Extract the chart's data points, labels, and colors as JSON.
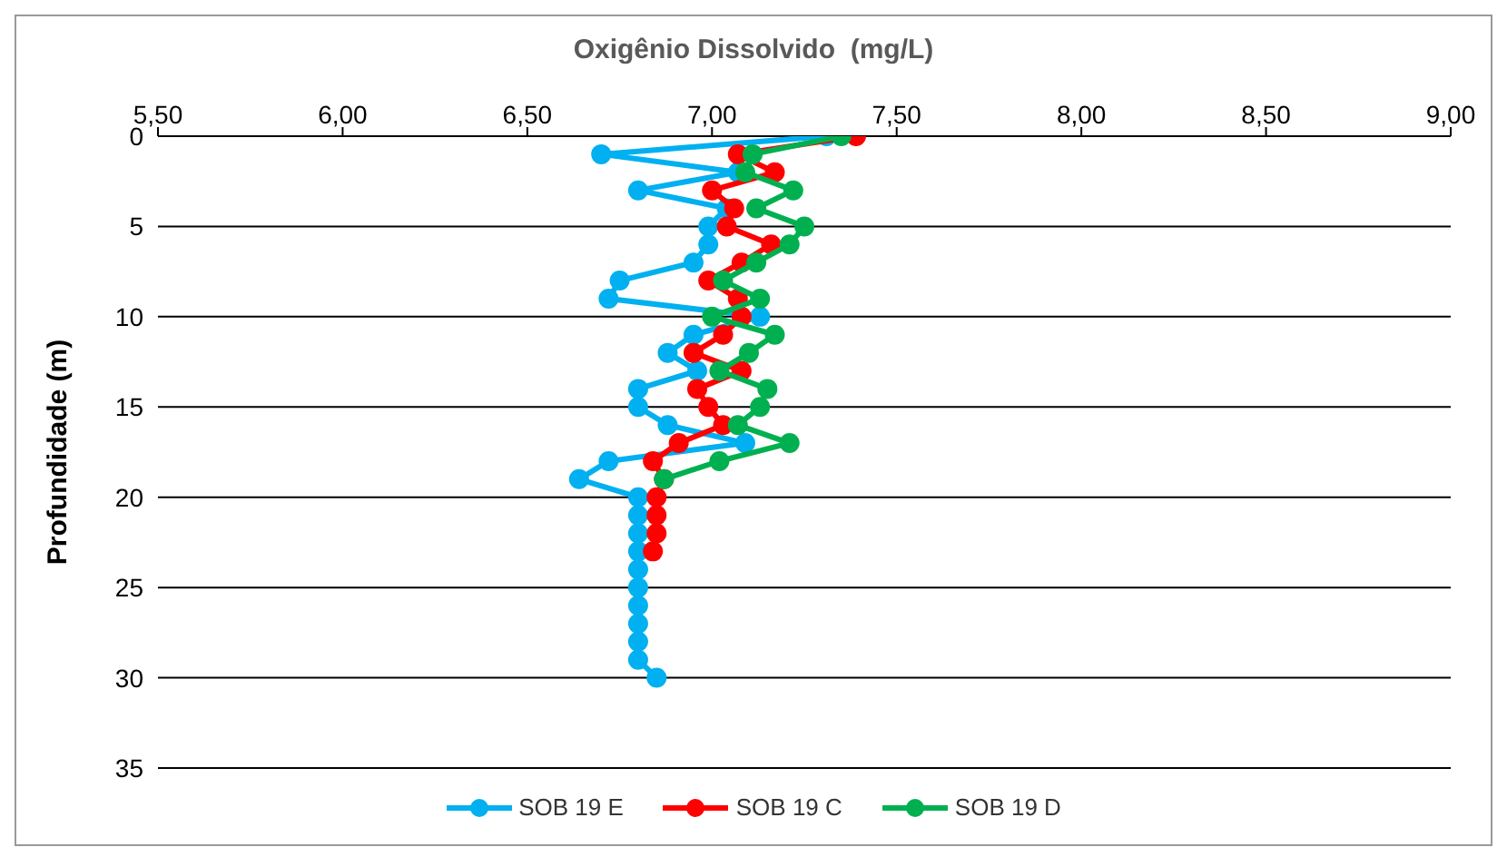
{
  "chart_data": {
    "type": "line",
    "xlabel": "Oxigênio Dissolvido  (mg/L)",
    "ylabel": "Profundidade (m)",
    "xlim": [
      5.5,
      9
    ],
    "xticks": [
      {
        "value": 5.5,
        "label": "5,50"
      },
      {
        "value": 6,
        "label": "6,00"
      },
      {
        "value": 6.5,
        "label": "6,50"
      },
      {
        "value": 7,
        "label": "7,00"
      },
      {
        "value": 7.5,
        "label": "7,50"
      },
      {
        "value": 8,
        "label": "8,00"
      },
      {
        "value": 8.5,
        "label": "8,50"
      },
      {
        "value": 9,
        "label": "9,00"
      }
    ],
    "ylim": [
      35,
      0
    ],
    "yticks": [
      0,
      5,
      10,
      15,
      20,
      25,
      30,
      35
    ],
    "grid": "y",
    "legend": "bottom",
    "marker": "circle",
    "line_style": "solid",
    "series": [
      {
        "name": "SOB 19 E",
        "color": "#00b0f0",
        "x": [
          7.31,
          6.7,
          7.07,
          6.8,
          7.04,
          6.99,
          6.99,
          6.95,
          6.75,
          6.72,
          7.13,
          6.95,
          6.88,
          6.96,
          6.8,
          6.8,
          6.88,
          7.09,
          6.72,
          6.64,
          6.8,
          6.8,
          6.8,
          6.8,
          6.8,
          6.8,
          6.8,
          6.8,
          6.8,
          6.8,
          6.85
        ],
        "values": [
          0,
          1,
          2,
          3,
          4,
          5,
          6,
          7,
          8,
          9,
          10,
          11,
          12,
          13,
          14,
          15,
          16,
          17,
          18,
          19,
          20,
          21,
          22,
          23,
          24,
          25,
          26,
          27,
          28,
          29,
          30
        ]
      },
      {
        "name": "SOB 19 C",
        "color": "#ff0000",
        "x": [
          7.39,
          7.07,
          7.17,
          7.0,
          7.06,
          7.04,
          7.16,
          7.08,
          6.99,
          7.07,
          7.08,
          7.03,
          6.95,
          7.08,
          6.96,
          6.99,
          7.03,
          6.91,
          6.84,
          6.87,
          6.85,
          6.85,
          6.85,
          6.84
        ],
        "values": [
          0,
          1,
          2,
          3,
          4,
          5,
          6,
          7,
          8,
          9,
          10,
          11,
          12,
          13,
          14,
          15,
          16,
          17,
          18,
          19,
          20,
          21,
          22,
          23
        ]
      },
      {
        "name": "SOB 19 D",
        "color": "#00b050",
        "x": [
          7.35,
          7.11,
          7.09,
          7.22,
          7.12,
          7.25,
          7.21,
          7.12,
          7.03,
          7.13,
          7.0,
          7.17,
          7.1,
          7.02,
          7.15,
          7.13,
          7.07,
          7.21,
          7.02,
          6.87
        ],
        "values": [
          0,
          1,
          2,
          3,
          4,
          5,
          6,
          7,
          8,
          9,
          10,
          11,
          12,
          13,
          14,
          15,
          16,
          17,
          18,
          19
        ]
      }
    ]
  }
}
